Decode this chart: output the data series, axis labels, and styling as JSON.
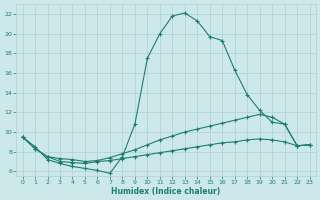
{
  "xlabel": "Humidex (Indice chaleur)",
  "bg_color": "#cce8ea",
  "grid_color": "#b0d0d2",
  "line_color": "#1e7d72",
  "xlim": [
    -0.5,
    23.5
  ],
  "ylim": [
    5.5,
    23.0
  ],
  "xticks": [
    0,
    1,
    2,
    3,
    4,
    5,
    6,
    7,
    8,
    9,
    10,
    11,
    12,
    13,
    14,
    15,
    16,
    17,
    18,
    19,
    20,
    21,
    22,
    23
  ],
  "yticks": [
    6,
    8,
    10,
    12,
    14,
    16,
    18,
    20,
    22
  ],
  "line1_x": [
    0,
    1,
    2,
    3,
    4,
    5,
    6,
    7,
    8,
    9,
    10,
    11,
    12,
    13,
    14,
    15,
    16,
    17,
    18,
    19,
    20,
    21,
    22,
    23
  ],
  "line1_y": [
    9.5,
    8.5,
    7.2,
    6.8,
    6.5,
    6.3,
    6.1,
    5.8,
    7.5,
    10.8,
    17.5,
    20.0,
    21.8,
    22.1,
    21.3,
    19.7,
    19.3,
    16.3,
    13.8,
    12.2,
    11.0,
    10.8,
    8.6,
    8.7
  ],
  "line2_x": [
    0,
    1,
    2,
    3,
    4,
    5,
    6,
    7,
    8,
    9,
    10,
    11,
    12,
    13,
    14,
    15,
    16,
    17,
    18,
    19,
    20,
    21,
    22,
    23
  ],
  "line2_y": [
    9.5,
    8.3,
    7.5,
    7.3,
    7.2,
    7.0,
    7.1,
    7.4,
    7.8,
    8.2,
    8.7,
    9.2,
    9.6,
    10.0,
    10.3,
    10.6,
    10.9,
    11.2,
    11.5,
    11.8,
    11.5,
    10.8,
    8.6,
    8.7
  ],
  "line3_x": [
    0,
    1,
    2,
    3,
    4,
    5,
    6,
    7,
    8,
    9,
    10,
    11,
    12,
    13,
    14,
    15,
    16,
    17,
    18,
    19,
    20,
    21,
    22,
    23
  ],
  "line3_y": [
    9.5,
    8.3,
    7.5,
    7.0,
    6.9,
    6.8,
    7.0,
    7.1,
    7.3,
    7.5,
    7.7,
    7.9,
    8.1,
    8.3,
    8.5,
    8.7,
    8.9,
    9.0,
    9.2,
    9.3,
    9.2,
    9.0,
    8.6,
    8.7
  ]
}
